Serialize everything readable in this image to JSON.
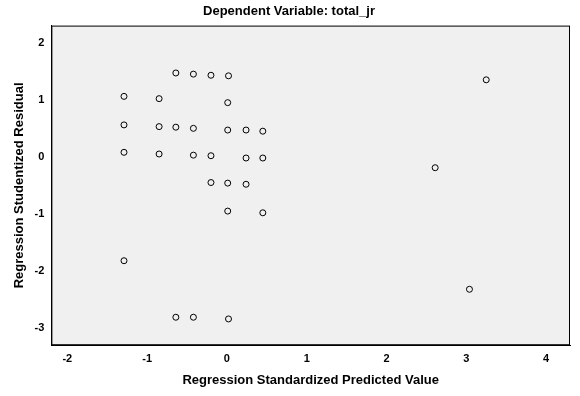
{
  "chart_data": {
    "type": "scatter",
    "title": "Dependent Variable: total_jr",
    "x_label": "Regression Standardized Predicted Value",
    "y_label": "Regression Studentized Residual",
    "x": [
      -0.64,
      -0.42,
      -0.2,
      0.02,
      3.25,
      -1.29,
      -0.85,
      0.01,
      -1.29,
      -0.85,
      -0.64,
      -0.42,
      0.01,
      0.24,
      0.45,
      -1.29,
      -0.85,
      -0.42,
      -0.2,
      0.24,
      0.45,
      2.61,
      -0.2,
      0.01,
      0.24,
      0.01,
      0.45,
      -1.29,
      3.04,
      -0.64,
      -0.42,
      0.02
    ],
    "values": [
      1.47,
      1.45,
      1.43,
      1.42,
      1.35,
      1.06,
      1.02,
      0.95,
      0.56,
      0.53,
      0.52,
      0.5,
      0.47,
      0.47,
      0.45,
      0.08,
      0.05,
      0.03,
      0.02,
      -0.02,
      -0.02,
      -0.19,
      -0.45,
      -0.46,
      -0.48,
      -0.95,
      -0.98,
      -1.82,
      -2.32,
      -2.81,
      -2.81,
      -2.84
    ],
    "color": "#000000",
    "marker": "circle",
    "xlim": [
      -2.2,
      4.3
    ],
    "xticks": [
      -2,
      -1,
      0,
      1,
      2,
      3,
      4
    ],
    "ylim": [
      -3.3,
      2.3
    ],
    "yticks": [
      -3,
      -2,
      -1,
      0,
      1,
      2
    ],
    "grid": false
  }
}
